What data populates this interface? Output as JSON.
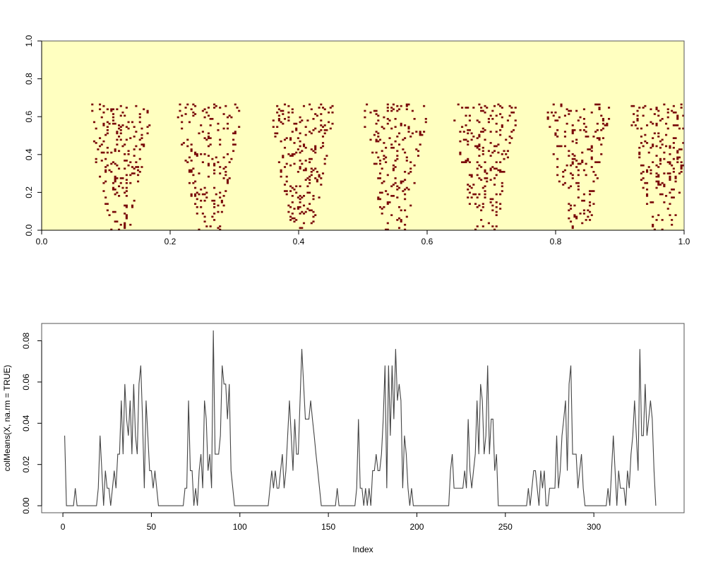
{
  "chart_data": [
    {
      "type": "heatmap",
      "title": "",
      "xlabel": "",
      "ylabel": "",
      "xlim": [
        0,
        1
      ],
      "ylim": [
        0,
        1
      ],
      "x_ticks": [
        "0.0",
        "0.2",
        "0.4",
        "0.6",
        "0.8",
        "1.0"
      ],
      "y_ticks": [
        "0.0",
        "0.2",
        "0.4",
        "0.6",
        "0.8",
        "1.0"
      ],
      "colors": {
        "background": "#ffffc0",
        "cell": "#7a0a0a"
      },
      "cell_cols": 337,
      "cell_rows": 118,
      "cell_data_description_omitted": true
    },
    {
      "type": "line",
      "title": "",
      "xlabel": "Index",
      "ylabel": "colMeans(X, na.rm = TRUE)",
      "xlim": [
        1,
        337
      ],
      "ylim": [
        0,
        0.085
      ],
      "x_ticks": [
        "0",
        "50",
        "100",
        "150",
        "200",
        "250",
        "300"
      ],
      "y_ticks": [
        "0.00",
        "0.02",
        "0.04",
        "0.06",
        "0.08"
      ],
      "series": [
        {
          "color": "#444444",
          "values": [
            0.034,
            0.0,
            0.0,
            0.0,
            0.0,
            0.0,
            0.0085,
            0.0,
            0.0,
            0.0,
            0.0,
            0.0,
            0.0,
            0.0,
            0.0,
            0.0,
            0.0,
            0.0,
            0.0,
            0.0085,
            0.034,
            0.017,
            0.0,
            0.017,
            0.0085,
            0.0085,
            0.0,
            0.0085,
            0.017,
            0.0085,
            0.025,
            0.025,
            0.051,
            0.025,
            0.059,
            0.042,
            0.034,
            0.051,
            0.025,
            0.059,
            0.034,
            0.025,
            0.059,
            0.068,
            0.042,
            0.0085,
            0.051,
            0.034,
            0.017,
            0.017,
            0.0085,
            0.017,
            0.0085,
            0.0,
            0.0,
            0.0,
            0.0,
            0.0,
            0.0,
            0.0,
            0.0,
            0.0,
            0.0,
            0.0,
            0.0,
            0.0,
            0.0,
            0.0,
            0.0085,
            0.0085,
            0.051,
            0.017,
            0.017,
            0.0,
            0.0085,
            0.0,
            0.017,
            0.025,
            0.0085,
            0.051,
            0.042,
            0.017,
            0.025,
            0.0085,
            0.085,
            0.025,
            0.025,
            0.025,
            0.034,
            0.068,
            0.059,
            0.059,
            0.042,
            0.059,
            0.017,
            0.0085,
            0.0,
            0.0,
            0.0,
            0.0,
            0.0,
            0.0,
            0.0,
            0.0,
            0.0,
            0.0,
            0.0,
            0.0,
            0.0,
            0.0,
            0.0,
            0.0,
            0.0,
            0.0,
            0.0,
            0.0,
            0.0085,
            0.017,
            0.0085,
            0.017,
            0.0085,
            0.0085,
            0.017,
            0.025,
            0.0085,
            0.017,
            0.034,
            0.051,
            0.034,
            0.017,
            0.042,
            0.025,
            0.025,
            0.051,
            0.076,
            0.059,
            0.042,
            0.042,
            0.042,
            0.051,
            0.042,
            0.034,
            0.025,
            0.017,
            0.0085,
            0.0,
            0.0,
            0.0,
            0.0,
            0.0,
            0.0,
            0.0,
            0.0,
            0.0,
            0.0085,
            0.0,
            0.0,
            0.0,
            0.0,
            0.0,
            0.0,
            0.0,
            0.0,
            0.0,
            0.0,
            0.0085,
            0.042,
            0.0085,
            0.0085,
            0.0,
            0.0085,
            0.0,
            0.0085,
            0.0,
            0.017,
            0.017,
            0.025,
            0.017,
            0.017,
            0.025,
            0.042,
            0.068,
            0.0085,
            0.068,
            0.034,
            0.068,
            0.042,
            0.076,
            0.051,
            0.059,
            0.051,
            0.0085,
            0.034,
            0.025,
            0.0085,
            0.0,
            0.0085,
            0.0,
            0.0,
            0.0,
            0.0,
            0.0,
            0.0,
            0.0,
            0.0,
            0.0,
            0.0,
            0.0,
            0.0,
            0.0,
            0.0,
            0.0,
            0.0,
            0.0,
            0.0,
            0.0,
            0.0,
            0.0,
            0.017,
            0.025,
            0.0085,
            0.0085,
            0.0085,
            0.0085,
            0.0085,
            0.0085,
            0.017,
            0.0085,
            0.042,
            0.017,
            0.0085,
            0.017,
            0.025,
            0.051,
            0.025,
            0.059,
            0.051,
            0.025,
            0.034,
            0.068,
            0.025,
            0.042,
            0.042,
            0.017,
            0.025,
            0.0,
            0.0,
            0.0,
            0.0,
            0.0,
            0.0,
            0.0,
            0.0,
            0.0,
            0.0,
            0.0,
            0.0,
            0.0,
            0.0,
            0.0,
            0.0,
            0.0,
            0.0085,
            0.0,
            0.0085,
            0.017,
            0.017,
            0.0085,
            0.0,
            0.017,
            0.0085,
            0.017,
            0.0,
            0.0,
            0.0085,
            0.0085,
            0.0085,
            0.0085,
            0.034,
            0.0085,
            0.017,
            0.034,
            0.042,
            0.051,
            0.017,
            0.059,
            0.068,
            0.025,
            0.025,
            0.025,
            0.0085,
            0.017,
            0.025,
            0.0085,
            0.0,
            0.0,
            0.0,
            0.0,
            0.0,
            0.0,
            0.0,
            0.0,
            0.0,
            0.0,
            0.0,
            0.0,
            0.0,
            0.0085,
            0.0,
            0.017,
            0.034,
            0.017,
            0.0,
            0.017,
            0.0085,
            0.0085,
            0.0085,
            0.0,
            0.017,
            0.0085,
            0.025,
            0.034,
            0.051,
            0.034,
            0.017,
            0.076,
            0.034,
            0.034,
            0.059,
            0.034,
            0.042,
            0.051,
            0.042,
            0.017,
            0.0
          ]
        }
      ]
    }
  ]
}
